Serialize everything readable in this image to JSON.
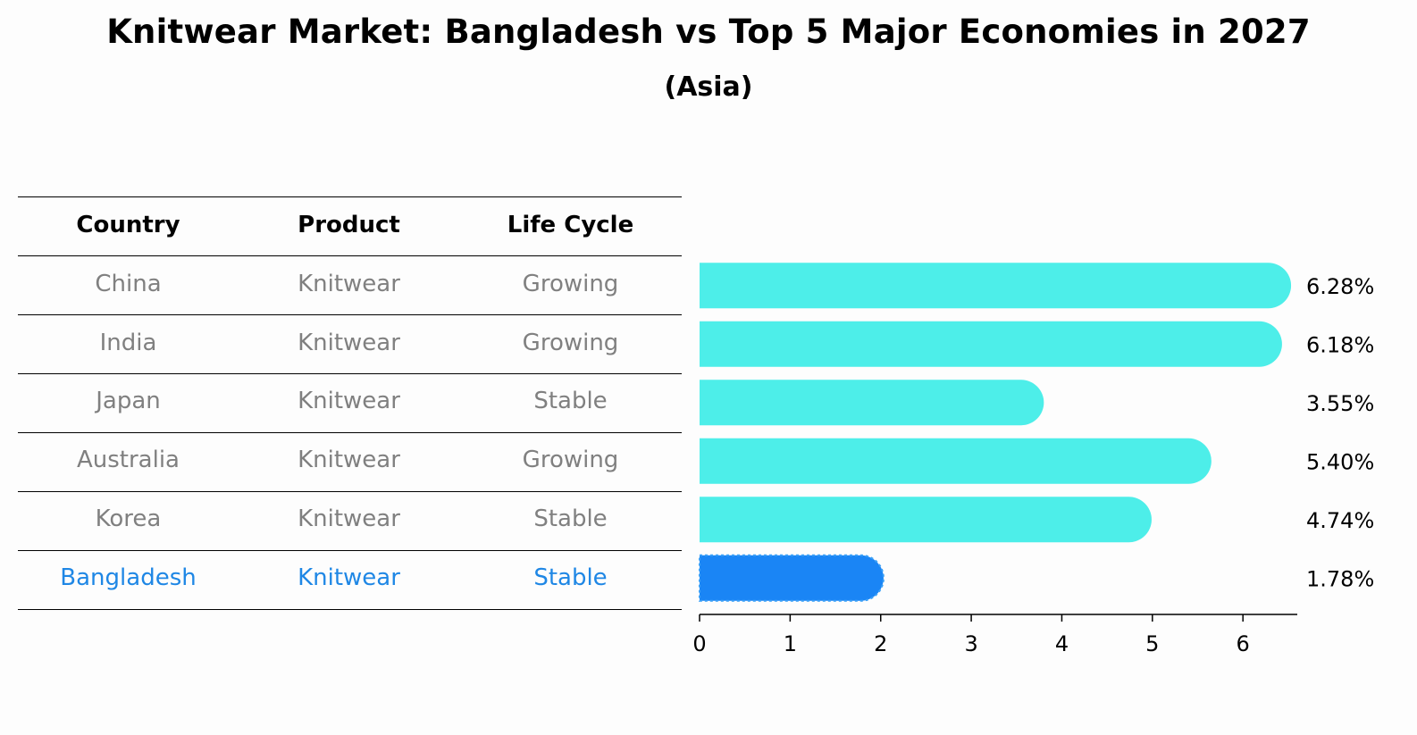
{
  "title": "Knitwear Market: Bangladesh vs Top 5 Major Economies in 2027",
  "subtitle": "(Asia)",
  "table": {
    "headers": [
      "Country",
      "Product",
      "Life Cycle"
    ],
    "rows": [
      [
        "China",
        "Knitwear",
        "Growing"
      ],
      [
        "India",
        "Knitwear",
        "Growing"
      ],
      [
        "Japan",
        "Knitwear",
        "Stable"
      ],
      [
        "Australia",
        "Knitwear",
        "Growing"
      ],
      [
        "Korea",
        "Knitwear",
        "Stable"
      ],
      [
        "Bangladesh",
        "Knitwear",
        "Stable"
      ]
    ],
    "highlight_row": 5
  },
  "chart_data": {
    "type": "bar",
    "orientation": "horizontal",
    "title": "Knitwear Market: Bangladesh vs Top 5 Major Economies in 2027",
    "subtitle": "(Asia)",
    "categories": [
      "China",
      "India",
      "Japan",
      "Australia",
      "Korea",
      "Bangladesh"
    ],
    "values": [
      6.28,
      6.18,
      3.55,
      5.4,
      4.74,
      1.78
    ],
    "value_labels": [
      "6.28%",
      "6.18%",
      "3.55%",
      "5.40%",
      "4.74%",
      "1.78%"
    ],
    "xlim": [
      0,
      6.6
    ],
    "xticks": [
      0,
      1,
      2,
      3,
      4,
      5,
      6
    ],
    "xlabel": "",
    "ylabel": "",
    "colors": {
      "default": "#4deee9",
      "highlight": "#1a85f5"
    },
    "highlight_index": 5
  }
}
